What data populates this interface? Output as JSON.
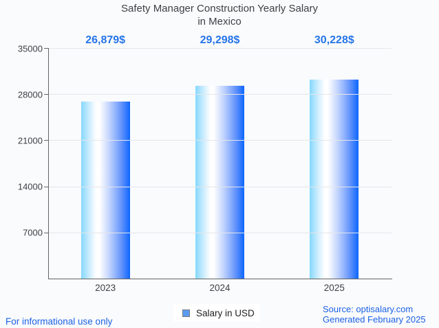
{
  "title": {
    "line1": "Safety Manager Construction Yearly Salary",
    "line2": "in Mexico"
  },
  "chart_data": {
    "type": "bar",
    "title": "Safety Manager Construction Yearly Salary in Mexico",
    "categories": [
      "2023",
      "2024",
      "2025"
    ],
    "values": [
      26879,
      29298,
      30228
    ],
    "value_labels": [
      "26,879$",
      "29,298$",
      "30,228$"
    ],
    "series": [
      {
        "name": "Salary in USD",
        "values": [
          26879,
          29298,
          30228
        ]
      }
    ],
    "xlabel": "",
    "ylabel": "",
    "ylim": [
      0,
      35000
    ],
    "yticks": [
      35000,
      28000,
      21000,
      14000,
      7000
    ],
    "ytick_labels": [
      "35000",
      "28000",
      "21000",
      "14000",
      "7000"
    ],
    "grid": true,
    "legend_position": "bottom",
    "colors": {
      "bar_gradient_left": "#85d8fc",
      "bar_gradient_mid": "#ffffff",
      "bar_gradient_right": "#0c66ff",
      "value_label": "#2574e8",
      "axis_line": "#636363",
      "gridline": "#e4e6e9",
      "tick_label": "#3c4043",
      "background": "#fafbfd"
    }
  },
  "legend": {
    "label": "Salary in USD",
    "marker_fill": "#5b9af0",
    "marker_border": "#7b7b7b"
  },
  "footer": {
    "left_note": "For informational use only",
    "source": "Source: optisalary.com",
    "generated": "Generated February 2025",
    "link_color": "#1b61e4"
  }
}
